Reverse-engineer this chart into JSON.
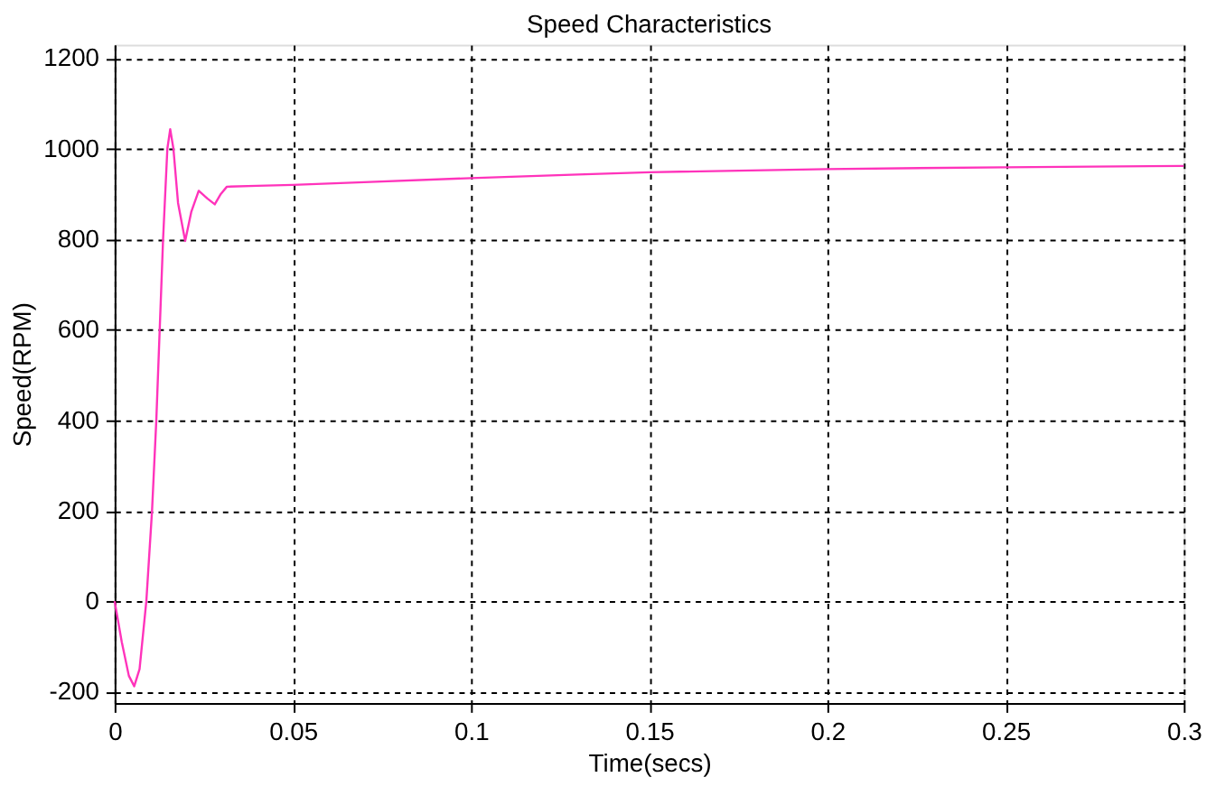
{
  "chart_data": {
    "type": "line",
    "title": "Speed Characteristics",
    "xlabel": "Time(secs)",
    "ylabel": "Speed(RPM)",
    "xlim": [
      0,
      0.3
    ],
    "xticks": [
      0,
      0.05,
      0.1,
      0.15,
      0.2,
      0.25,
      0.3
    ],
    "ylim": [
      -225,
      1230
    ],
    "yticks": [
      -200,
      0,
      200,
      400,
      600,
      800,
      1000,
      1200
    ],
    "grid": true,
    "line_style": "solid",
    "series": [
      {
        "color": "#ff33bb",
        "x": [
          0,
          0.002,
          0.004,
          0.0055,
          0.007,
          0.0089,
          0.0105,
          0.0117,
          0.0136,
          0.0148,
          0.0156,
          0.0165,
          0.0178,
          0.0198,
          0.0215,
          0.0236,
          0.026,
          0.0281,
          0.0298,
          0.0315,
          0.04,
          0.05,
          0.07,
          0.1,
          0.13,
          0.15,
          0.2,
          0.25,
          0.3
        ],
        "values": [
          0,
          -90,
          -165,
          -188,
          -150,
          0,
          200,
          400,
          800,
          1000,
          1043,
          1000,
          880,
          796,
          860,
          907,
          890,
          877,
          900,
          916,
          918,
          920,
          926,
          935,
          943,
          948,
          955,
          959,
          962
        ]
      }
    ]
  }
}
